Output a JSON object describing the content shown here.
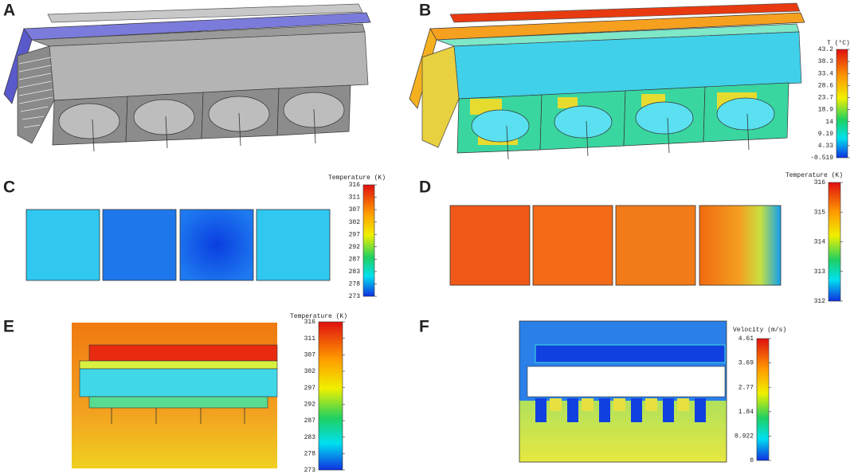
{
  "panels": [
    {
      "label": "A"
    },
    {
      "label": "B",
      "colorbar": {
        "title": "T (°C)",
        "ticks": [
          43.2,
          38.3,
          33.4,
          28.6,
          23.7,
          18.9,
          14,
          9.19,
          4.33,
          -0.519
        ]
      }
    },
    {
      "label": "C",
      "colorbar": {
        "title": "Temperature (K)",
        "ticks": [
          316,
          311,
          307,
          302,
          297,
          292,
          287,
          283,
          278,
          273
        ]
      }
    },
    {
      "label": "D",
      "colorbar": {
        "title": "Temperature (K)",
        "ticks": [
          316,
          315,
          314,
          313,
          312
        ]
      }
    },
    {
      "label": "E",
      "colorbar": {
        "title": "Temperature (K)",
        "ticks": [
          316,
          311,
          307,
          302,
          297,
          292,
          287,
          283,
          278,
          273
        ]
      }
    },
    {
      "label": "F",
      "colorbar": {
        "title": "Velocity (m/s)",
        "ticks": [
          4.61,
          3.69,
          2.77,
          1.84,
          0.922,
          0
        ]
      }
    }
  ]
}
